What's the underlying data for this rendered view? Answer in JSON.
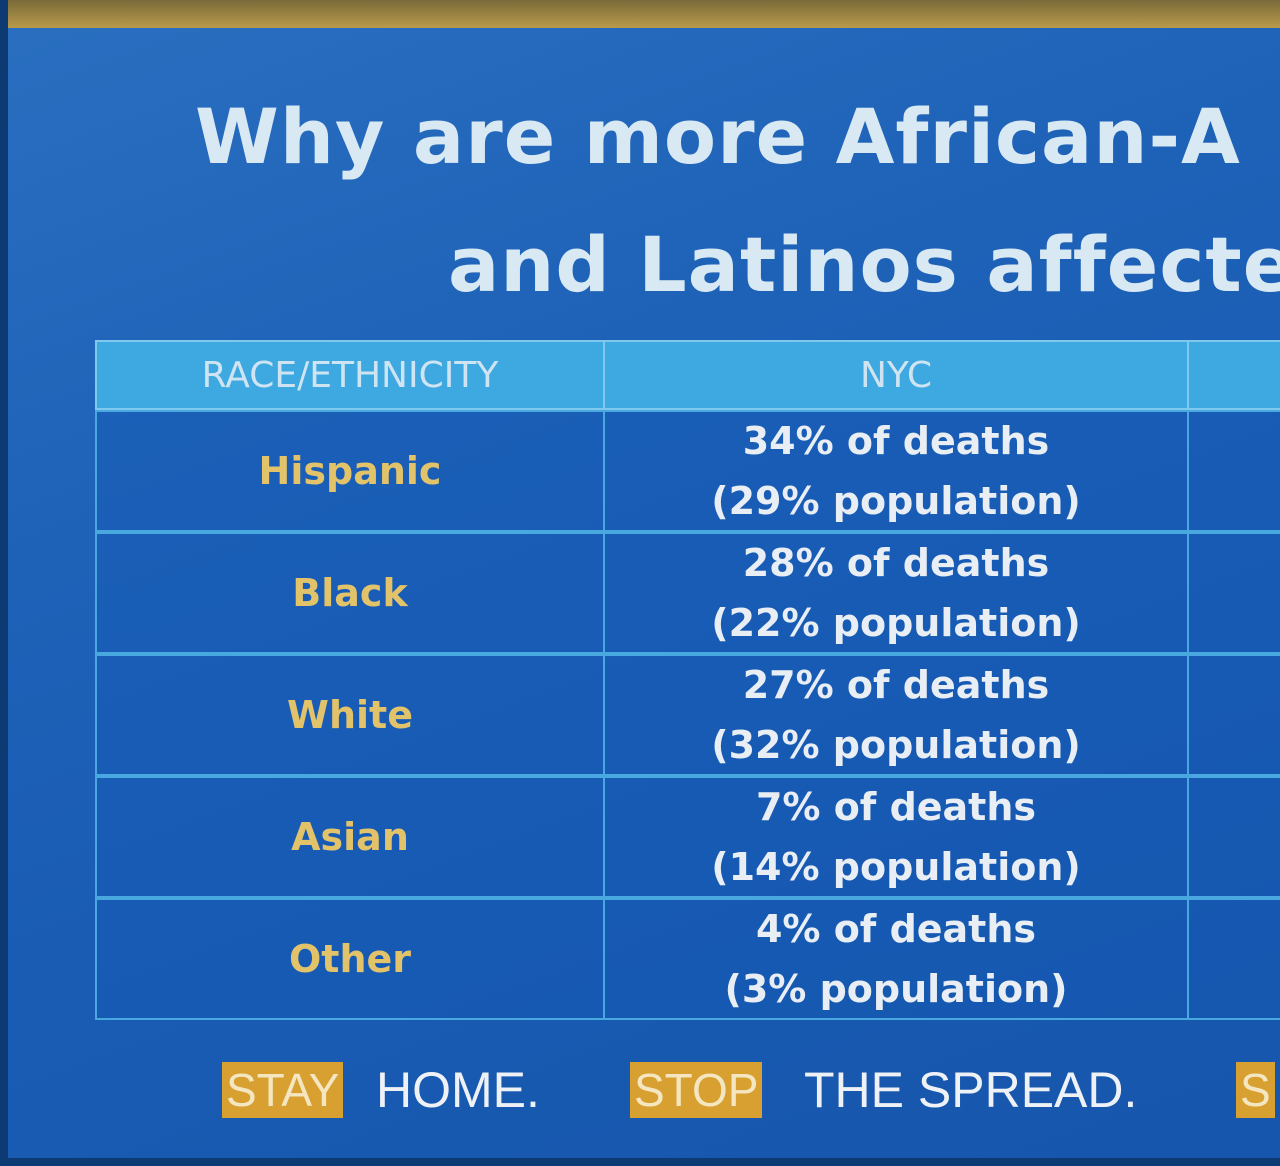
{
  "header": {
    "title_lines": [
      "Why are more African-A",
      "and Latinos affecte"
    ]
  },
  "table": {
    "columns": [
      "RACE/ETHNICITY",
      "NYC"
    ],
    "rows": [
      [
        "Hispanic",
        "34% of deaths",
        "(29% population)"
      ],
      [
        "Black",
        "28% of deaths",
        "(22% population)"
      ],
      [
        "White",
        "27% of deaths",
        "(32% population)"
      ],
      [
        "Asian",
        "7% of deaths",
        "(14% population)"
      ],
      [
        "Other",
        "4% of deaths",
        "(3% population)"
      ]
    ]
  },
  "footer": {
    "items": [
      {
        "highlight": "STAY",
        "text": "HOME."
      },
      {
        "highlight": "STOP",
        "text": "THE SPREAD."
      },
      {
        "highlight": "S"
      }
    ]
  }
}
